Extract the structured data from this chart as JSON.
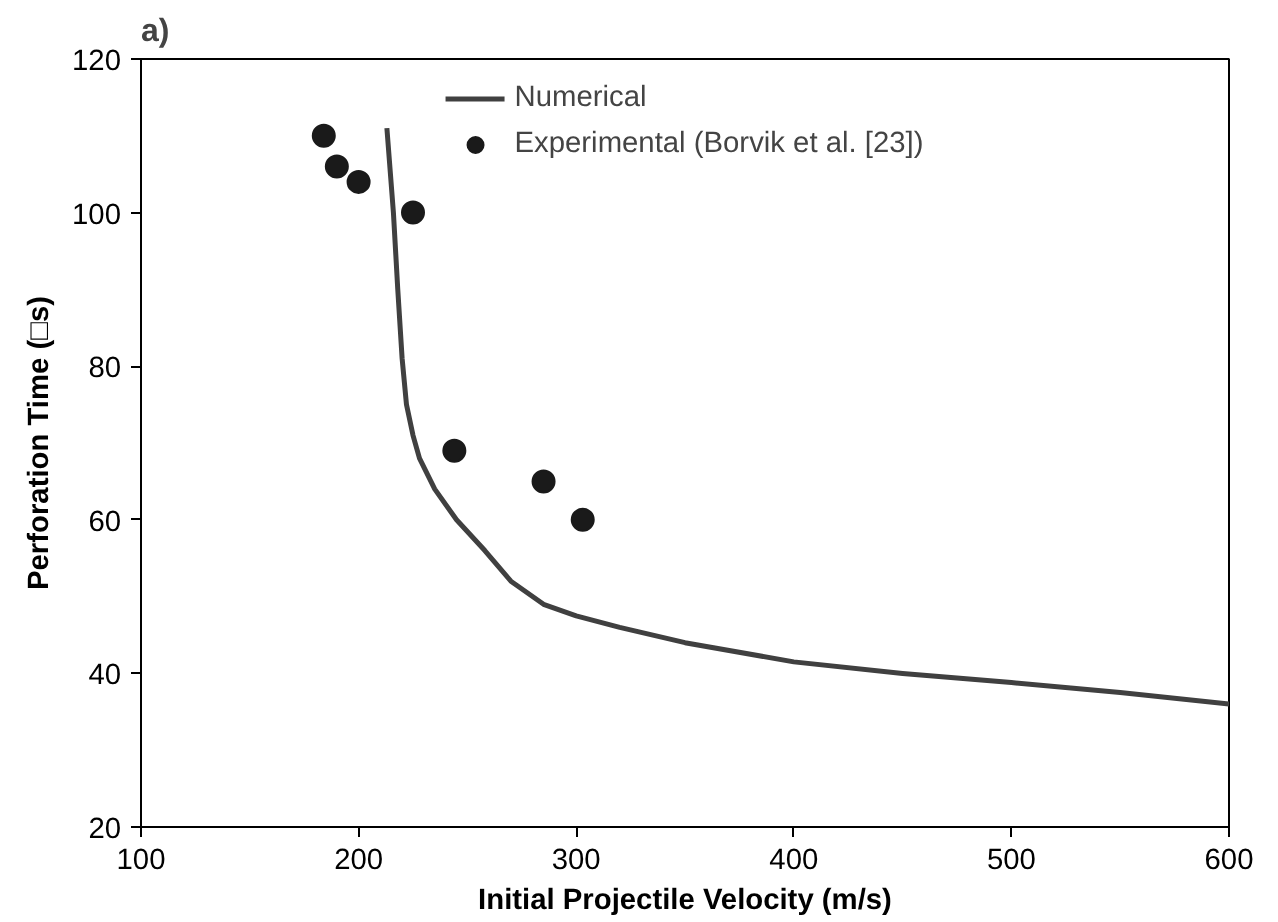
{
  "chart_data": {
    "type": "line",
    "title": "a)",
    "xlabel": "Initial Projectile Velocity (m/s)",
    "ylabel": "Perforation Time (□s)",
    "xlim": [
      100,
      600
    ],
    "ylim": [
      20,
      120
    ],
    "xticks": [
      100,
      200,
      300,
      400,
      500,
      600
    ],
    "yticks": [
      20,
      40,
      60,
      80,
      100,
      120
    ],
    "grid": false,
    "legend": "top",
    "series": [
      {
        "name": "Numerical",
        "color": "#404040",
        "marker": "none",
        "line_style": "solid",
        "x": [
          213,
          216,
          218,
          220,
          222,
          225,
          228,
          235,
          245,
          258,
          270,
          285,
          300,
          320,
          350,
          400,
          450,
          500,
          550,
          600
        ],
        "values": [
          111,
          100,
          90,
          81,
          75,
          71,
          68,
          64,
          60,
          56,
          52,
          49,
          47.5,
          46,
          44,
          41.5,
          40,
          38.8,
          37.5,
          36
        ]
      },
      {
        "name": "Experimental (Borvik et al. [23])",
        "type": "scatter",
        "color": "#1a1a1a",
        "marker": "circle",
        "x": [
          184,
          190,
          200,
          225,
          244,
          285,
          303
        ],
        "values": [
          110,
          106,
          104,
          100,
          69,
          65,
          60
        ]
      }
    ]
  }
}
